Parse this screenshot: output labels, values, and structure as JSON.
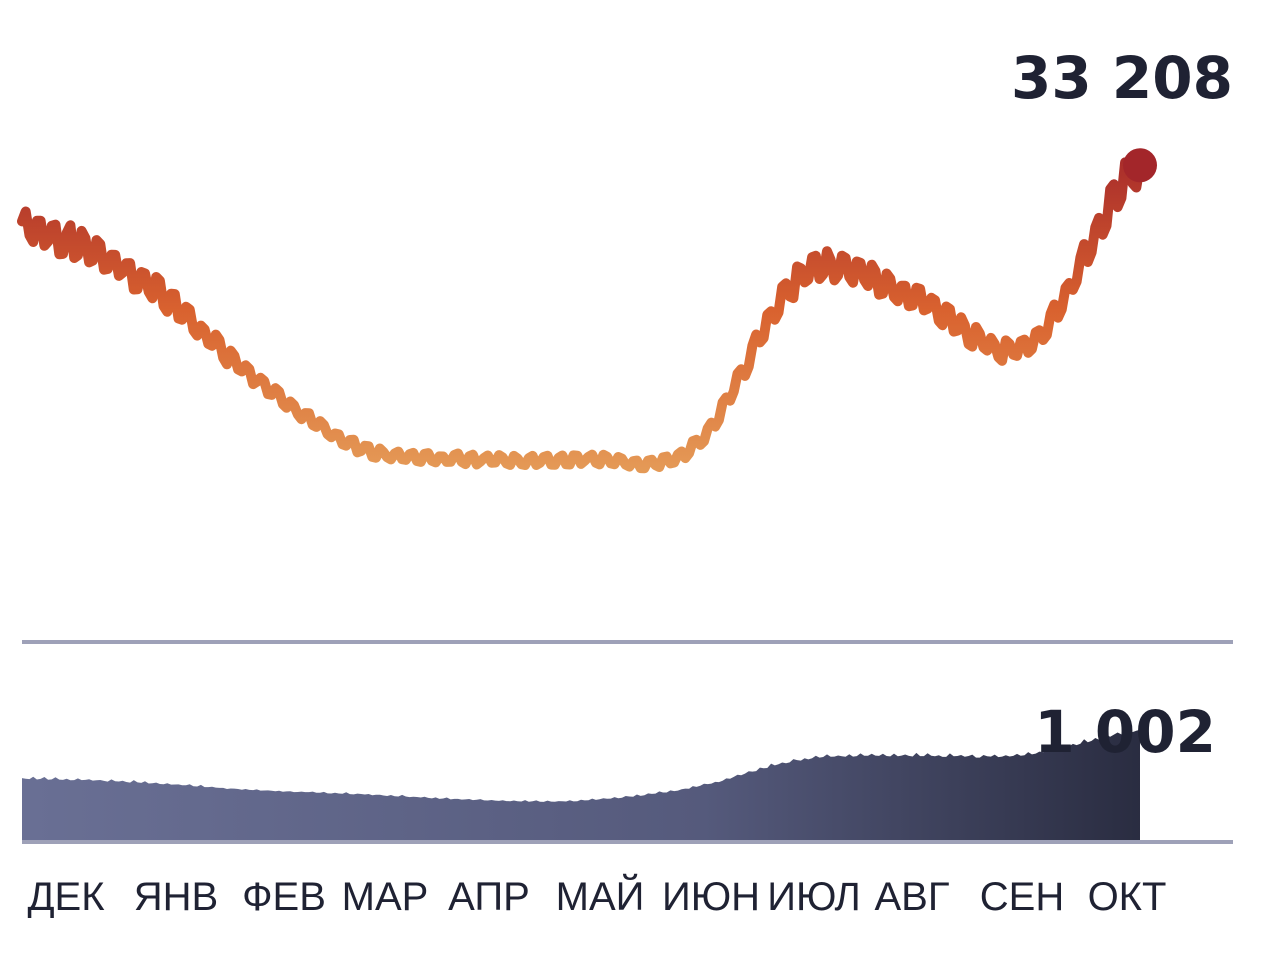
{
  "chart_data": [
    {
      "type": "line",
      "title": "",
      "xlabel": "",
      "ylabel": "",
      "x": [
        "ДЕК",
        "ЯНВ",
        "ФЕВ",
        "МАР",
        "АПР",
        "МАЙ",
        "ИЮН",
        "ИЮЛ",
        "АВГ",
        "СЕН",
        "ОКТ"
      ],
      "series": [
        {
          "values": [
            28000,
            24000,
            16000,
            9500,
            8500,
            8500,
            9500,
            24000,
            22000,
            18000,
            33208
          ],
          "last_value": 33208,
          "last_label": "33 208"
        }
      ],
      "ylim": [
        0,
        35500
      ],
      "grid": false,
      "color_gradient": [
        "#e8ab63",
        "#d9622f",
        "#a3262a"
      ]
    },
    {
      "type": "area",
      "title": "",
      "xlabel": "",
      "ylabel": "",
      "x": [
        "ДЕК",
        "ЯНВ",
        "ФЕВ",
        "МАР",
        "АПР",
        "МАЙ",
        "ИЮН",
        "ИЮЛ",
        "АВГ",
        "СЕН",
        "ОКТ"
      ],
      "series": [
        {
          "values": [
            560,
            530,
            460,
            420,
            370,
            360,
            480,
            740,
            770,
            780,
            1002
          ],
          "last_value": 1002,
          "last_label": "1 002"
        }
      ],
      "ylim": [
        0,
        1800
      ],
      "grid": false,
      "color_gradient": [
        "#6a7095",
        "#1c1e2e"
      ]
    }
  ],
  "labels": {
    "cases_last": "33 208",
    "deaths_last": "1 002"
  },
  "months": [
    "ДЕК",
    "ЯНВ",
    "ФЕВ",
    "МАР",
    "АПР",
    "МАЙ",
    "ИЮН",
    "ИЮЛ",
    "АВГ",
    "СЕН",
    "ОКТ"
  ],
  "colors": {
    "axis": "#9ea1b8",
    "text": "#1f2233",
    "endpoint": "#a3262a"
  }
}
